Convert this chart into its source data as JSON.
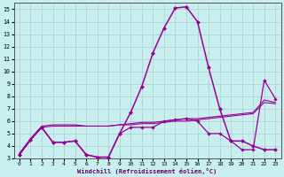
{
  "xlabel": "Windchill (Refroidissement éolien,°C)",
  "bg_color": "#c8eeed",
  "grid_color": "#aacccc",
  "line_color": "#990099",
  "xmin": 0,
  "xmax": 23,
  "ymin": 3,
  "ymax": 15.5,
  "yticks": [
    3,
    4,
    5,
    6,
    7,
    8,
    9,
    10,
    11,
    12,
    13,
    14,
    15
  ],
  "xticks": [
    0,
    1,
    2,
    3,
    4,
    5,
    6,
    7,
    8,
    9,
    10,
    11,
    12,
    13,
    14,
    15,
    16,
    17,
    18,
    19,
    20,
    21,
    22,
    23
  ],
  "line_peak": {
    "x": [
      0,
      1,
      2,
      3,
      4,
      5,
      6,
      7,
      8,
      9,
      10,
      11,
      12,
      13,
      14,
      15,
      16,
      17,
      18,
      19,
      20,
      21,
      22,
      23
    ],
    "y": [
      3.3,
      4.5,
      5.5,
      4.3,
      4.3,
      4.4,
      3.3,
      3.1,
      3.1,
      5.0,
      6.7,
      8.8,
      11.5,
      13.5,
      15.1,
      15.2,
      14.0,
      10.3,
      7.0,
      4.4,
      4.4,
      4.0,
      3.7,
      3.7
    ]
  },
  "line_zigzag": {
    "x": [
      0,
      1,
      2,
      3,
      4,
      5,
      6,
      7,
      8,
      9,
      10,
      11,
      12,
      13,
      14,
      15,
      16,
      17,
      18,
      19,
      20,
      21,
      22,
      23
    ],
    "y": [
      3.3,
      4.5,
      5.5,
      4.3,
      4.3,
      4.4,
      3.3,
      3.1,
      3.1,
      5.0,
      5.5,
      5.5,
      5.5,
      6.0,
      6.1,
      6.2,
      6.0,
      5.0,
      5.0,
      4.4,
      3.7,
      3.7,
      9.3,
      7.8
    ]
  },
  "line_slow1": {
    "x": [
      0,
      1,
      2,
      3,
      4,
      5,
      6,
      7,
      8,
      9,
      10,
      11,
      12,
      13,
      14,
      15,
      16,
      17,
      18,
      19,
      20,
      21,
      22,
      23
    ],
    "y": [
      3.4,
      4.5,
      5.5,
      5.6,
      5.6,
      5.6,
      5.6,
      5.6,
      5.6,
      5.7,
      5.7,
      5.8,
      5.8,
      5.9,
      6.0,
      6.0,
      6.1,
      6.2,
      6.3,
      6.4,
      6.5,
      6.6,
      7.5,
      7.4
    ]
  },
  "line_slow2": {
    "x": [
      0,
      1,
      2,
      3,
      4,
      5,
      6,
      7,
      8,
      9,
      10,
      11,
      12,
      13,
      14,
      15,
      16,
      17,
      18,
      19,
      20,
      21,
      22,
      23
    ],
    "y": [
      3.4,
      4.6,
      5.6,
      5.7,
      5.7,
      5.7,
      5.6,
      5.6,
      5.6,
      5.7,
      5.8,
      5.9,
      5.9,
      6.0,
      6.1,
      6.2,
      6.2,
      6.3,
      6.4,
      6.5,
      6.6,
      6.7,
      7.7,
      7.5
    ]
  }
}
